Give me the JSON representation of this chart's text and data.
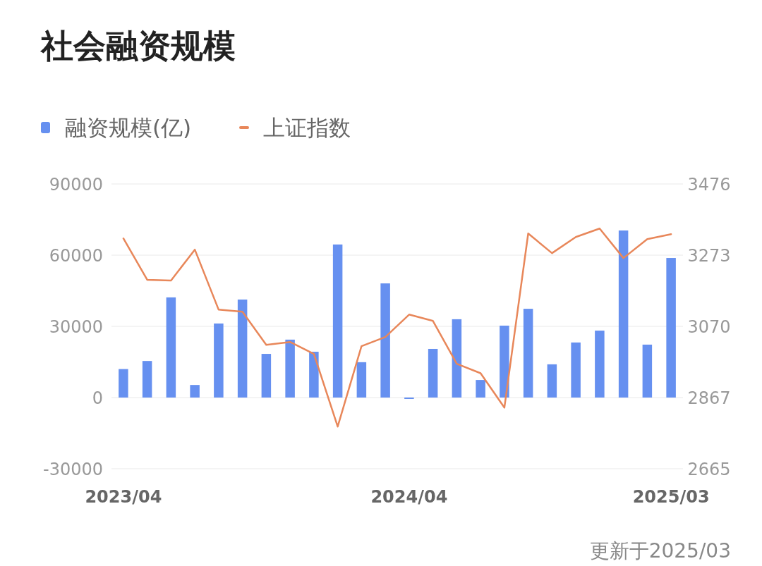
{
  "chart_data": {
    "type": "bar",
    "title": "社会融资规模",
    "annotations": [
      "更新于2025/03"
    ],
    "categories": [
      "2023/04",
      null,
      null,
      null,
      null,
      null,
      null,
      null,
      null,
      null,
      null,
      null,
      "2024/04",
      null,
      null,
      null,
      null,
      null,
      null,
      null,
      null,
      null,
      null,
      "2025/03"
    ],
    "series": [
      {
        "name": "融资规模(亿)",
        "color": "#6690f0",
        "values": [
          12000,
          15400,
          42200,
          5300,
          31200,
          41300,
          18400,
          24400,
          19300,
          64500,
          14900,
          48100,
          -600,
          20500,
          33000,
          7400,
          30300,
          37400,
          14000,
          23200,
          28200,
          70400,
          22300,
          58800
        ]
      },
      {
        "name": "上证指数",
        "type": "line",
        "axis": "y2",
        "color": "#e8875a",
        "values": [
          3321,
          3203,
          3201,
          3289,
          3118,
          3112,
          3018,
          3026,
          2992,
          2785,
          3014,
          3040,
          3104,
          3086,
          2964,
          2937,
          2839,
          3335,
          3279,
          3325,
          3349,
          3265,
          3319,
          3333
        ]
      }
    ],
    "ylim": [
      -30000,
      90000
    ],
    "yticks": [
      -30000,
      0,
      30000,
      60000,
      90000
    ],
    "y2lim": [
      2665,
      3476
    ],
    "y2ticks": [
      2665,
      2867,
      3070,
      3273,
      3476
    ],
    "grid": "y",
    "legend": "top left"
  }
}
